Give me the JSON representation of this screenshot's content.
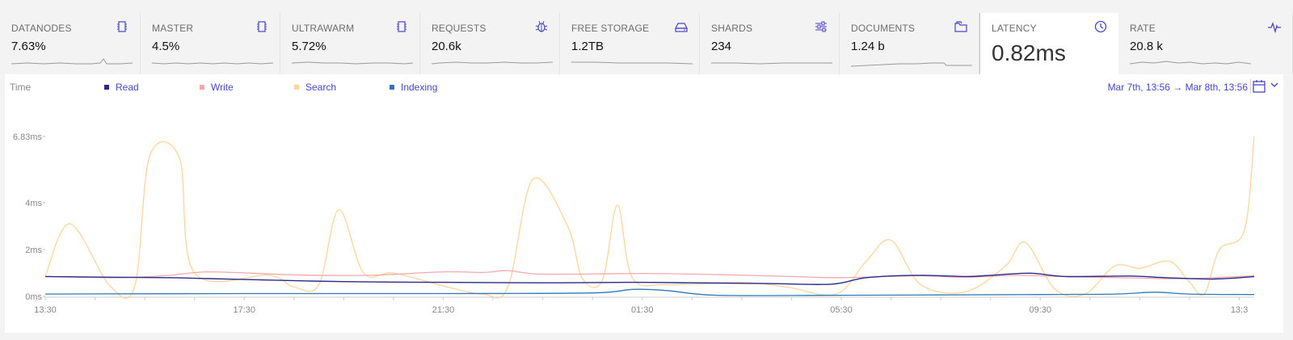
{
  "metrics": [
    {
      "name": "DATANODES",
      "value": "7.63%",
      "icon": "chip-icon"
    },
    {
      "name": "MASTER",
      "value": "4.5%",
      "icon": "chip-icon"
    },
    {
      "name": "ULTRAWARM",
      "value": "5.72%",
      "icon": "chip-icon"
    },
    {
      "name": "REQUESTS",
      "value": "20.6k",
      "icon": "bug-icon"
    },
    {
      "name": "FREE STORAGE",
      "value": "1.2TB",
      "icon": "hard-drive-icon"
    },
    {
      "name": "SHARDS",
      "value": "234",
      "icon": "sliders-icon"
    },
    {
      "name": "DOCUMENTS",
      "value": "1.24 b",
      "icon": "folder-icon"
    },
    {
      "name": "LATENCY",
      "value": "0.82ms",
      "icon": "clock-icon",
      "active": true
    },
    {
      "name": "RATE",
      "value": "20.8 k",
      "icon": "pulse-icon"
    }
  ],
  "colors": {
    "accent": "#4a44c6",
    "read": "#2a2a8c",
    "write": "#f4aaaa",
    "search": "#fdd59c",
    "indexing": "#2f79b8"
  },
  "chart_data": {
    "type": "line",
    "legend_title": "Time",
    "legend_placement": "top-left",
    "date_range": "Mar 7th, 13:56 → Mar 8th, 13:56",
    "y_ticks": [
      {
        "label": "6.83ms",
        "value": 6.83
      },
      {
        "label": "4ms",
        "value": 4
      },
      {
        "label": "2ms",
        "value": 2
      },
      {
        "label": "0ms",
        "value": 0
      }
    ],
    "ylim": [
      0,
      6.83
    ],
    "x_ticks": [
      "13:30",
      "17:30",
      "21:30",
      "01:30",
      "05:30",
      "09:30",
      "13:3"
    ],
    "x_domain_hours": [
      0,
      24.3
    ],
    "grid": false,
    "series": [
      {
        "name": "Read",
        "color": "#2a2a8c",
        "points": [
          [
            0,
            0.85
          ],
          [
            1.2,
            0.82
          ],
          [
            2.5,
            0.8
          ],
          [
            4,
            0.72
          ],
          [
            6,
            0.63
          ],
          [
            8,
            0.6
          ],
          [
            10,
            0.58
          ],
          [
            11.8,
            0.6
          ],
          [
            13,
            0.58
          ],
          [
            14.5,
            0.55
          ],
          [
            15.8,
            0.52
          ],
          [
            16.5,
            0.8
          ],
          [
            17.5,
            0.9
          ],
          [
            18.5,
            0.85
          ],
          [
            19,
            0.9
          ],
          [
            19.8,
            0.99
          ],
          [
            20.5,
            0.85
          ],
          [
            21.8,
            0.87
          ],
          [
            22.5,
            0.8
          ],
          [
            23.5,
            0.74
          ],
          [
            24.3,
            0.85
          ]
        ]
      },
      {
        "name": "Write",
        "color": "#f4aaaa",
        "points": [
          [
            0,
            0.85
          ],
          [
            1.5,
            0.8
          ],
          [
            2.5,
            0.9
          ],
          [
            3.3,
            1.05
          ],
          [
            5,
            0.92
          ],
          [
            6.5,
            0.9
          ],
          [
            8,
            1.05
          ],
          [
            8.8,
            1.02
          ],
          [
            9.3,
            1.1
          ],
          [
            10,
            0.95
          ],
          [
            12,
            0.98
          ],
          [
            13.5,
            0.93
          ],
          [
            15,
            0.85
          ],
          [
            16,
            0.8
          ],
          [
            17.5,
            0.88
          ],
          [
            18.5,
            0.82
          ],
          [
            19.5,
            0.9
          ],
          [
            20.5,
            0.85
          ],
          [
            22,
            0.78
          ],
          [
            23,
            0.76
          ],
          [
            24.3,
            0.88
          ]
        ]
      },
      {
        "name": "Search",
        "color": "#fdd59c",
        "points": [
          [
            0,
            0.85
          ],
          [
            0.5,
            3.1
          ],
          [
            1.3,
            0.45
          ],
          [
            1.8,
            0.45
          ],
          [
            2.1,
            6.0
          ],
          [
            2.7,
            5.9
          ],
          [
            3.0,
            1.0
          ],
          [
            4.5,
            0.9
          ],
          [
            5.0,
            0.4
          ],
          [
            5.5,
            0.5
          ],
          [
            5.9,
            3.7
          ],
          [
            6.4,
            1.0
          ],
          [
            7.0,
            1.0
          ],
          [
            8.0,
            0.45
          ],
          [
            8.8,
            0.1
          ],
          [
            9.3,
            0.4
          ],
          [
            9.8,
            5.0
          ],
          [
            10.5,
            3.0
          ],
          [
            10.8,
            0.75
          ],
          [
            11.2,
            0.7
          ],
          [
            11.5,
            3.9
          ],
          [
            11.8,
            0.8
          ],
          [
            12.5,
            0.5
          ],
          [
            14.0,
            0.6
          ],
          [
            14.9,
            0.4
          ],
          [
            15.9,
            0.1
          ],
          [
            16.5,
            1.5
          ],
          [
            17.0,
            2.4
          ],
          [
            17.6,
            0.5
          ],
          [
            18.5,
            0.2
          ],
          [
            19.3,
            1.3
          ],
          [
            19.7,
            2.3
          ],
          [
            20.3,
            0.3
          ],
          [
            20.9,
            0.1
          ],
          [
            21.5,
            1.3
          ],
          [
            22.0,
            1.2
          ],
          [
            22.6,
            1.5
          ],
          [
            23.0,
            0.6
          ],
          [
            23.3,
            0.1
          ],
          [
            23.6,
            2.0
          ],
          [
            24.1,
            2.8
          ],
          [
            24.3,
            6.83
          ]
        ]
      },
      {
        "name": "Indexing",
        "color": "#2f79b8",
        "points": [
          [
            0,
            0.1
          ],
          [
            4,
            0.12
          ],
          [
            8,
            0.12
          ],
          [
            11,
            0.15
          ],
          [
            11.8,
            0.3
          ],
          [
            12.5,
            0.25
          ],
          [
            13.5,
            0.05
          ],
          [
            16,
            0.05
          ],
          [
            20,
            0.08
          ],
          [
            21.5,
            0.1
          ],
          [
            22.3,
            0.18
          ],
          [
            23,
            0.1
          ],
          [
            24.3,
            0.08
          ]
        ]
      }
    ]
  }
}
